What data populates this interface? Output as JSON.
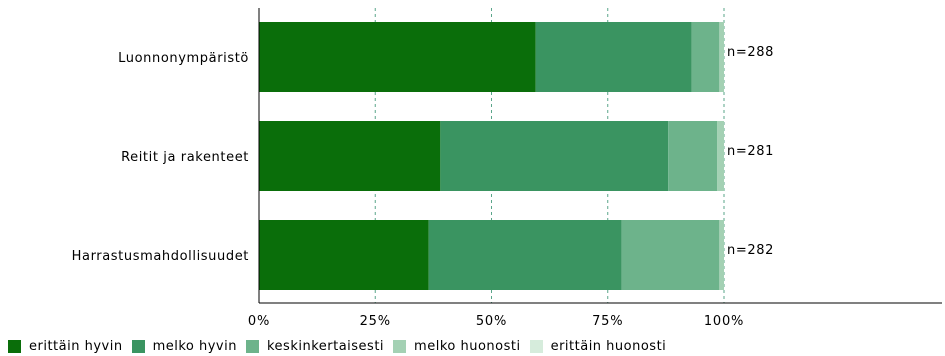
{
  "chart_data": {
    "type": "bar",
    "orientation": "horizontal",
    "stacked": true,
    "categories": [
      "Luonnonympäristö",
      "Reitit ja rakenteet",
      "Harrastusmahdollisuudet"
    ],
    "n_labels": [
      "n=288",
      "n=281",
      "n=282"
    ],
    "series": [
      {
        "name": "erittäin hyvin",
        "color": "#0a6e0a",
        "values": [
          59.5,
          39.0,
          36.5
        ]
      },
      {
        "name": "melko hyvin",
        "color": "#3a9461",
        "values": [
          33.5,
          49.0,
          41.5
        ]
      },
      {
        "name": "keskinkertaisesti",
        "color": "#6db38b",
        "values": [
          6.0,
          10.5,
          21.0
        ]
      },
      {
        "name": "melko huonosti",
        "color": "#a4d1b4",
        "values": [
          1.0,
          1.5,
          1.0
        ]
      },
      {
        "name": "erittäin huonosti",
        "color": "#d6ecdc",
        "values": [
          0.0,
          0.0,
          0.0
        ]
      }
    ],
    "x_ticks": [
      "0%",
      "25%",
      "50%",
      "75%",
      "100%"
    ],
    "xlim": [
      0,
      100
    ],
    "grid": true,
    "legend_position": "bottom"
  }
}
